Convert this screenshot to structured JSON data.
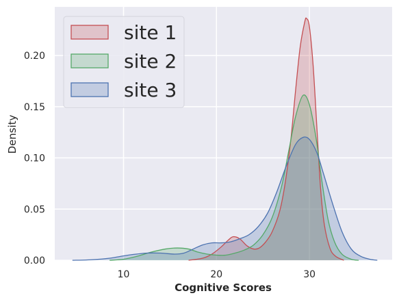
{
  "chart_data": {
    "type": "area",
    "title": "",
    "xlabel": "Cognitive Scores",
    "ylabel": "Density",
    "xlim": [
      2.6,
      38.9
    ],
    "ylim": [
      0,
      0.2475
    ],
    "xticks": [
      10,
      20,
      30
    ],
    "yticks": [
      0.0,
      0.05,
      0.1,
      0.15,
      0.2
    ],
    "xtick_labels": [
      "10",
      "20",
      "30"
    ],
    "ytick_labels": [
      "0.00",
      "0.05",
      "0.10",
      "0.15",
      "0.20"
    ],
    "grid": true,
    "legend_position": "top-left",
    "series": [
      {
        "name": "site 1",
        "color": "#c44e52",
        "points": [
          [
            17,
            0
          ],
          [
            18.5,
            0.002
          ],
          [
            19.5,
            0.006
          ],
          [
            20.5,
            0.013
          ],
          [
            21.3,
            0.02
          ],
          [
            21.8,
            0.023
          ],
          [
            22.5,
            0.021
          ],
          [
            23.3,
            0.014
          ],
          [
            24,
            0.011
          ],
          [
            24.6,
            0.012
          ],
          [
            25.3,
            0.018
          ],
          [
            26,
            0.028
          ],
          [
            26.8,
            0.048
          ],
          [
            27.4,
            0.076
          ],
          [
            28,
            0.118
          ],
          [
            28.5,
            0.165
          ],
          [
            29,
            0.208
          ],
          [
            29.5,
            0.233
          ],
          [
            29.7,
            0.236
          ],
          [
            30,
            0.228
          ],
          [
            30.4,
            0.19
          ],
          [
            30.8,
            0.13
          ],
          [
            31.2,
            0.07
          ],
          [
            31.6,
            0.035
          ],
          [
            32.2,
            0.012
          ],
          [
            32.8,
            0.004
          ],
          [
            33.7,
            0
          ]
        ]
      },
      {
        "name": "site 2",
        "color": "#55a868",
        "points": [
          [
            8.5,
            0
          ],
          [
            10,
            0.001
          ],
          [
            11.5,
            0.004
          ],
          [
            13,
            0.008
          ],
          [
            14.5,
            0.011
          ],
          [
            15.8,
            0.012
          ],
          [
            17,
            0.011
          ],
          [
            18,
            0.008
          ],
          [
            19,
            0.006
          ],
          [
            20,
            0.005
          ],
          [
            21,
            0.005
          ],
          [
            22,
            0.007
          ],
          [
            23,
            0.01
          ],
          [
            24,
            0.015
          ],
          [
            25,
            0.025
          ],
          [
            26,
            0.042
          ],
          [
            27,
            0.072
          ],
          [
            27.8,
            0.108
          ],
          [
            28.5,
            0.14
          ],
          [
            29.3,
            0.161
          ],
          [
            30,
            0.152
          ],
          [
            30.7,
            0.12
          ],
          [
            31.3,
            0.08
          ],
          [
            32,
            0.04
          ],
          [
            32.7,
            0.018
          ],
          [
            33.5,
            0.006
          ],
          [
            34.5,
            0.001
          ],
          [
            35.3,
            0
          ]
        ]
      },
      {
        "name": "site 3",
        "color": "#4c72b0",
        "points": [
          [
            4.5,
            0
          ],
          [
            6.5,
            0.0005
          ],
          [
            8.5,
            0.002
          ],
          [
            10.5,
            0.005
          ],
          [
            12.5,
            0.007
          ],
          [
            14,
            0.007
          ],
          [
            15.5,
            0.006
          ],
          [
            16.5,
            0.007
          ],
          [
            17.5,
            0.011
          ],
          [
            18.5,
            0.015
          ],
          [
            19.5,
            0.017
          ],
          [
            20.5,
            0.017
          ],
          [
            21.5,
            0.018
          ],
          [
            22.5,
            0.021
          ],
          [
            23.5,
            0.025
          ],
          [
            24.5,
            0.033
          ],
          [
            25.5,
            0.046
          ],
          [
            26.5,
            0.067
          ],
          [
            27.5,
            0.092
          ],
          [
            28.5,
            0.113
          ],
          [
            29.3,
            0.12
          ],
          [
            30,
            0.118
          ],
          [
            30.8,
            0.105
          ],
          [
            31.5,
            0.085
          ],
          [
            32.5,
            0.055
          ],
          [
            33.5,
            0.028
          ],
          [
            34.5,
            0.011
          ],
          [
            35.5,
            0.004
          ],
          [
            36.5,
            0.001
          ],
          [
            37.3,
            0
          ]
        ]
      }
    ]
  }
}
